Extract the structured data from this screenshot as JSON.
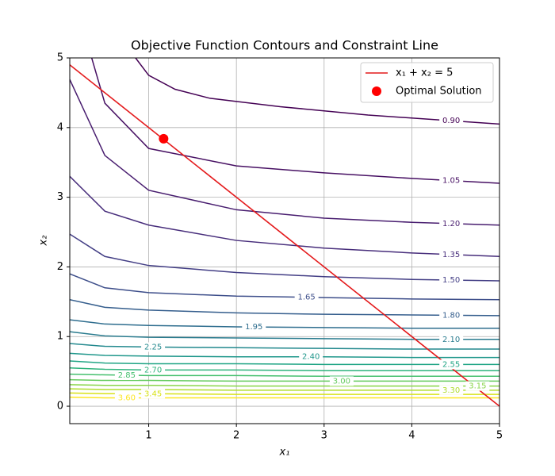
{
  "chart_data": {
    "type": "contour",
    "title": "Objective Function Contours and Constraint Line",
    "x_label": "x₁",
    "y_label": "x₂",
    "xlim": [
      0.1,
      5
    ],
    "ylim": [
      -0.25,
      5
    ],
    "xticks": [
      1,
      2,
      3,
      4,
      5
    ],
    "yticks": [
      0,
      1,
      2,
      3,
      4,
      5
    ],
    "grid": true,
    "legend": "upper right",
    "contours": [
      {
        "level": {
          "value": 0.9,
          "label": "0.90"
        },
        "color": "#440154",
        "x": [
          0.85,
          1,
          1.3,
          1.7,
          2.5,
          3.5,
          5
        ],
        "y": [
          5,
          4.75,
          4.55,
          4.42,
          4.3,
          4.18,
          4.05
        ]
      },
      {
        "level": {
          "value": 1.05,
          "label": "1.05"
        },
        "color": "#471063",
        "x": [
          0.35,
          0.5,
          1,
          2,
          3,
          4,
          5
        ],
        "y": [
          5,
          4.35,
          3.7,
          3.45,
          3.35,
          3.27,
          3.2
        ]
      },
      {
        "level": {
          "value": 1.2,
          "label": "1.20"
        },
        "color": "#481d6f",
        "x": [
          0.1,
          0.5,
          1,
          2,
          3,
          4,
          5
        ],
        "y": [
          4.69,
          3.6,
          3.1,
          2.82,
          2.7,
          2.64,
          2.6
        ]
      },
      {
        "level": {
          "value": 1.35,
          "label": "1.35"
        },
        "color": "#472d7b",
        "x": [
          0.1,
          0.5,
          1,
          2,
          3,
          4,
          5
        ],
        "y": [
          3.3,
          2.8,
          2.6,
          2.38,
          2.27,
          2.2,
          2.15
        ]
      },
      {
        "level": {
          "value": 1.5,
          "label": "1.50"
        },
        "color": "#433e85",
        "x": [
          0.1,
          0.5,
          1,
          2,
          3,
          4,
          5
        ],
        "y": [
          2.47,
          2.15,
          2.02,
          1.92,
          1.86,
          1.82,
          1.8
        ]
      },
      {
        "level": {
          "value": 1.65,
          "label": "1.65"
        },
        "color": "#3d4e8a",
        "x": [
          0.1,
          0.5,
          1,
          2,
          3,
          4,
          5
        ],
        "y": [
          1.9,
          1.7,
          1.63,
          1.58,
          1.56,
          1.54,
          1.53
        ]
      },
      {
        "level": {
          "value": 1.8,
          "label": "1.80"
        },
        "color": "#355e8d",
        "x": [
          0.1,
          0.5,
          1,
          2,
          3,
          4,
          5
        ],
        "y": [
          1.53,
          1.42,
          1.38,
          1.34,
          1.32,
          1.31,
          1.3
        ]
      },
      {
        "level": {
          "value": 1.95,
          "label": "1.95"
        },
        "color": "#2e6d8e",
        "x": [
          0.1,
          0.5,
          1,
          2,
          3,
          4,
          5
        ],
        "y": [
          1.24,
          1.18,
          1.16,
          1.14,
          1.13,
          1.12,
          1.12
        ]
      },
      {
        "level": {
          "value": 2.1,
          "label": "2.10"
        },
        "color": "#297b8e",
        "x": [
          0.1,
          0.5,
          1,
          2,
          3,
          4,
          5
        ],
        "y": [
          1.07,
          1.01,
          0.99,
          0.98,
          0.97,
          0.96,
          0.96
        ]
      },
      {
        "level": {
          "value": 2.25,
          "label": "2.25"
        },
        "color": "#23898e",
        "x": [
          0.1,
          0.5,
          1,
          2,
          3,
          4,
          5
        ],
        "y": [
          0.9,
          0.86,
          0.85,
          0.84,
          0.83,
          0.82,
          0.82
        ]
      },
      {
        "level": {
          "value": 2.4,
          "label": "2.40"
        },
        "color": "#1f978b",
        "x": [
          0.1,
          0.5,
          1,
          2,
          3,
          4,
          5
        ],
        "y": [
          0.76,
          0.73,
          0.72,
          0.71,
          0.71,
          0.7,
          0.7
        ]
      },
      {
        "level": {
          "value": 2.55,
          "label": "2.55"
        },
        "color": "#21a585",
        "x": [
          0.1,
          0.5,
          1,
          2,
          3,
          4,
          5
        ],
        "y": [
          0.65,
          0.62,
          0.61,
          0.61,
          0.6,
          0.6,
          0.6
        ]
      },
      {
        "level": {
          "value": 2.7,
          "label": "2.70"
        },
        "color": "#2eb37c",
        "x": [
          0.1,
          0.5,
          1,
          2,
          3,
          4,
          5
        ],
        "y": [
          0.55,
          0.53,
          0.52,
          0.52,
          0.51,
          0.51,
          0.51
        ]
      },
      {
        "level": {
          "value": 2.85,
          "label": "2.85"
        },
        "color": "#46c06f",
        "x": [
          0.1,
          0.5,
          1,
          2,
          3,
          4,
          5
        ],
        "y": [
          0.46,
          0.45,
          0.44,
          0.44,
          0.43,
          0.43,
          0.43
        ]
      },
      {
        "level": {
          "value": 3,
          "label": "3.00"
        },
        "color": "#65cb5e",
        "x": [
          0.1,
          0.5,
          1,
          2,
          3,
          4,
          5
        ],
        "y": [
          0.38,
          0.37,
          0.37,
          0.36,
          0.36,
          0.36,
          0.36
        ]
      },
      {
        "level": {
          "value": 3.15,
          "label": "3.15"
        },
        "color": "#89d548",
        "x": [
          0.1,
          0.5,
          1,
          2,
          3,
          4,
          5
        ],
        "y": [
          0.31,
          0.3,
          0.3,
          0.29,
          0.29,
          0.29,
          0.29
        ]
      },
      {
        "level": {
          "value": 3.3,
          "label": "3.30"
        },
        "color": "#b0dd2f",
        "x": [
          0.1,
          0.5,
          1,
          2,
          3,
          4,
          5
        ],
        "y": [
          0.25,
          0.24,
          0.24,
          0.23,
          0.23,
          0.23,
          0.23
        ]
      },
      {
        "level": {
          "value": 3.45,
          "label": "3.45"
        },
        "color": "#d8e219",
        "x": [
          0.1,
          0.5,
          1,
          2,
          3,
          4,
          5
        ],
        "y": [
          0.19,
          0.18,
          0.18,
          0.17,
          0.17,
          0.17,
          0.17
        ]
      },
      {
        "level": {
          "value": 3.6,
          "label": "3.60"
        },
        "color": "#fde725",
        "x": [
          0.1,
          0.5,
          1,
          2,
          3,
          4,
          5
        ],
        "y": [
          0.13,
          0.12,
          0.12,
          0.12,
          0.12,
          0.12,
          0.12
        ]
      }
    ],
    "series": [
      {
        "name": "x₁ + x₂ = 5",
        "type": "line",
        "color": "#e41a1c",
        "x": [
          0.1,
          5
        ],
        "y": [
          4.9,
          0
        ]
      },
      {
        "name": "Optimal Solution",
        "type": "scatter",
        "color": "#ff0000",
        "x": [
          1.17
        ],
        "y": [
          3.84
        ]
      }
    ]
  }
}
